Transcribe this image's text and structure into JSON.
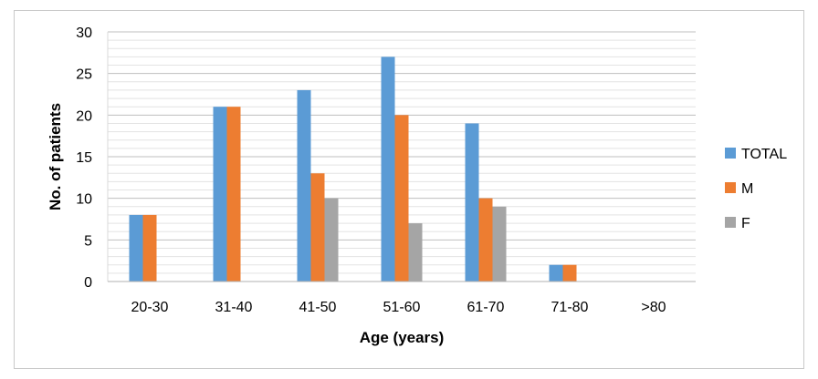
{
  "chart_data": {
    "type": "bar",
    "categories": [
      "20-30",
      "31-40",
      "41-50",
      "51-60",
      "61-70",
      "71-80",
      ">80"
    ],
    "series": [
      {
        "name": "TOTAL",
        "color": "#5b9bd5",
        "values": [
          8,
          21,
          23,
          27,
          19,
          2,
          0
        ]
      },
      {
        "name": "M",
        "color": "#ed7d31",
        "values": [
          8,
          21,
          13,
          20,
          10,
          2,
          0
        ]
      },
      {
        "name": "F",
        "color": "#a5a5a5",
        "values": [
          0,
          0,
          10,
          7,
          9,
          0,
          0
        ]
      }
    ],
    "xlabel": "Age (years)",
    "ylabel": "No. of patients",
    "ylim": [
      0,
      30
    ],
    "yticks": [
      0,
      5,
      10,
      15,
      20,
      25,
      30
    ],
    "grid": true,
    "legend_position": "right"
  }
}
